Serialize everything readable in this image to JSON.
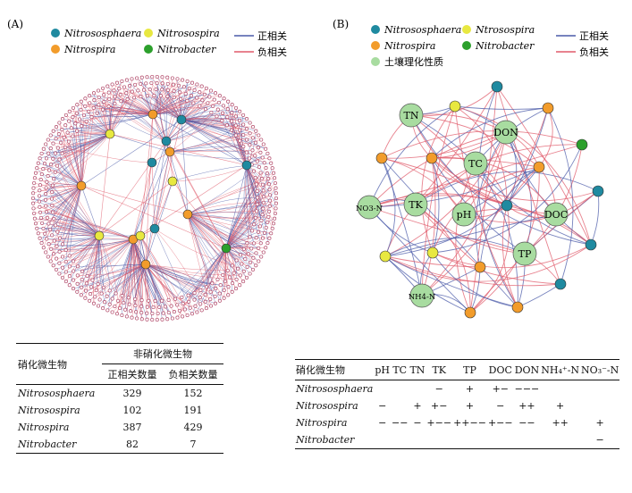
{
  "panelA": {
    "label": "(A)",
    "legend": {
      "taxa": [
        {
          "name": "Nitrososphaera",
          "color": "#1f8aa0"
        },
        {
          "name": "Nitrosospira",
          "color": "#e8e840"
        },
        {
          "name": "Nitrospira",
          "color": "#f29c2b"
        },
        {
          "name": "Nitrobacter",
          "color": "#2ca02c"
        }
      ],
      "lines": [
        {
          "name": "正相关",
          "color": "#4a5aa8"
        },
        {
          "name": "负相关",
          "color": "#e05a6a"
        }
      ]
    }
  },
  "panelB": {
    "label": "(B)",
    "legend": {
      "taxa": [
        {
          "name": "Nitrososphaera",
          "color": "#1f8aa0"
        },
        {
          "name": "Ntrosospira",
          "color": "#e8e840"
        },
        {
          "name": "Nitrospira",
          "color": "#f29c2b"
        },
        {
          "name": "Nitrobacter",
          "color": "#2ca02c"
        },
        {
          "name": "土壤理化性质",
          "color": "#a8dca0"
        }
      ],
      "lines": [
        {
          "name": "正相关",
          "color": "#4a5aa8"
        },
        {
          "name": "负相关",
          "color": "#e05a6a"
        }
      ]
    },
    "soil_nodes": [
      "TN",
      "DON",
      "TC",
      "NO3-N",
      "TK",
      "pH",
      "DOC",
      "TP",
      "NH4-N"
    ]
  },
  "tableA": {
    "header_col0": "硝化微生物",
    "header_group": "非硝化微生物",
    "subheaders": [
      "正相关数量",
      "负相关数量"
    ],
    "rows": [
      {
        "name": "Nitrososphaera",
        "pos": "329",
        "neg": "152"
      },
      {
        "name": "Nitrosospira",
        "pos": "102",
        "neg": "191"
      },
      {
        "name": "Nitrospira",
        "pos": "387",
        "neg": "429"
      },
      {
        "name": "Nitrobacter",
        "pos": "82",
        "neg": "7"
      }
    ]
  },
  "tableB": {
    "header_col0": "硝化微生物",
    "columns": [
      "pH",
      "TC",
      "TN",
      "TK",
      "TP",
      "DOC",
      "DON",
      "NH₄⁺-N",
      "NO₃⁻-N"
    ],
    "rows": [
      {
        "name": "Nitrososphaera",
        "cells": [
          "",
          "",
          "",
          "−",
          "+",
          "+−",
          "−−−",
          "",
          ""
        ]
      },
      {
        "name": "Nitrosospira",
        "cells": [
          "−",
          "",
          "+",
          "+−",
          "+",
          "−",
          "++",
          "+",
          ""
        ]
      },
      {
        "name": "Nitrospira",
        "cells": [
          "−",
          "−−",
          "−",
          "+−−",
          "++−−",
          "+−−",
          "−−",
          "++",
          "+"
        ]
      },
      {
        "name": "Nitrobacter",
        "cells": [
          "",
          "",
          "",
          "",
          "",
          "",
          "",
          "",
          "−"
        ]
      }
    ]
  }
}
